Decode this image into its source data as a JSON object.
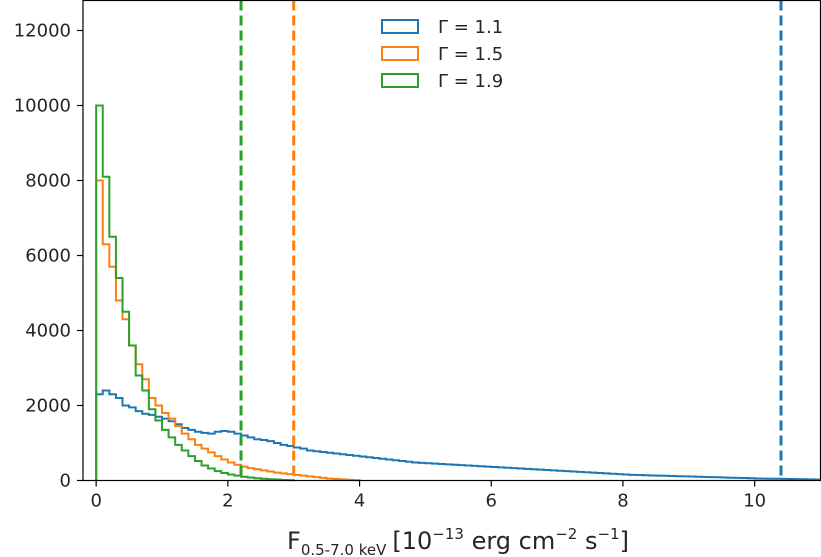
{
  "chart_data": {
    "type": "histogram",
    "title": "",
    "xlabel": {
      "base": "F",
      "subscript": "0.5-7.0 keV",
      "unit_open": "[10",
      "exp1": "−13",
      "mid": " erg cm",
      "exp2": "−2",
      "mid2": " s",
      "exp3": "−1",
      "close": "]"
    },
    "ylabel": "",
    "xlim": [
      -0.2,
      11.0
    ],
    "ylim": [
      0,
      12800
    ],
    "xticks": [
      0,
      2,
      4,
      6,
      8,
      10
    ],
    "xtick_labels": [
      "0",
      "2",
      "4",
      "6",
      "8",
      "10"
    ],
    "yticks": [
      0,
      2000,
      4000,
      6000,
      8000,
      10000,
      12000
    ],
    "ytick_labels": [
      "0",
      "2000",
      "4000",
      "6000",
      "8000",
      "10000",
      "12000"
    ],
    "legend_position": "top-center",
    "series": [
      {
        "name": "Γ = 1.1",
        "label": "Γ = 1.1",
        "color": "#1f77b4",
        "bin_start": 0.0,
        "bin_width": 0.1,
        "counts": [
          2300,
          2400,
          2300,
          2200,
          2000,
          1950,
          1850,
          1780,
          1750,
          1700,
          1650,
          1580,
          1500,
          1400,
          1350,
          1300,
          1270,
          1250,
          1300,
          1320,
          1300,
          1250,
          1200,
          1150,
          1100,
          1080,
          1050,
          1000,
          950,
          920,
          880,
          850,
          800,
          780,
          760,
          740,
          720,
          700,
          680,
          660,
          640,
          620,
          600,
          580,
          560,
          540,
          520,
          500,
          480,
          470,
          460,
          450,
          440,
          430,
          420,
          410,
          400,
          390,
          380,
          370,
          360,
          350,
          340,
          330,
          320,
          310,
          300,
          290,
          280,
          270,
          260,
          250,
          240,
          230,
          220,
          210,
          200,
          190,
          180,
          170,
          160,
          150,
          145,
          140,
          135,
          130,
          125,
          120,
          115,
          110,
          105,
          100,
          95,
          90,
          85,
          80,
          75,
          70,
          65,
          60,
          55,
          50,
          48,
          45,
          42,
          40,
          38,
          35,
          30,
          25
        ]
      },
      {
        "name": "Γ = 1.5",
        "label": "Γ = 1.5",
        "color": "#ff7f0e",
        "bin_start": 0.0,
        "bin_width": 0.1,
        "counts": [
          8000,
          6300,
          5700,
          4800,
          4300,
          3600,
          3100,
          2700,
          2200,
          2000,
          1800,
          1650,
          1450,
          1250,
          1100,
          950,
          850,
          750,
          650,
          560,
          480,
          420,
          370,
          330,
          300,
          270,
          240,
          210,
          190,
          170,
          150,
          130,
          110,
          90,
          70,
          50,
          40,
          30,
          20,
          10
        ]
      },
      {
        "name": "Γ = 1.9",
        "label": "Γ = 1.9",
        "color": "#2ca02c",
        "bin_start": 0.0,
        "bin_width": 0.1,
        "counts": [
          10000,
          8100,
          6500,
          5400,
          4500,
          3600,
          2800,
          2400,
          1900,
          1600,
          1350,
          1150,
          950,
          800,
          650,
          520,
          400,
          320,
          250,
          200,
          160,
          130,
          100,
          80,
          60,
          45,
          35,
          25,
          15,
          10
        ]
      }
    ],
    "vlines": [
      {
        "name": "Γ = 1.1 limit",
        "x": 10.4,
        "color": "#1f77b4"
      },
      {
        "name": "Γ = 1.5 limit",
        "x": 3.0,
        "color": "#ff7f0e"
      },
      {
        "name": "Γ = 1.9 limit",
        "x": 2.2,
        "color": "#2ca02c"
      }
    ]
  }
}
